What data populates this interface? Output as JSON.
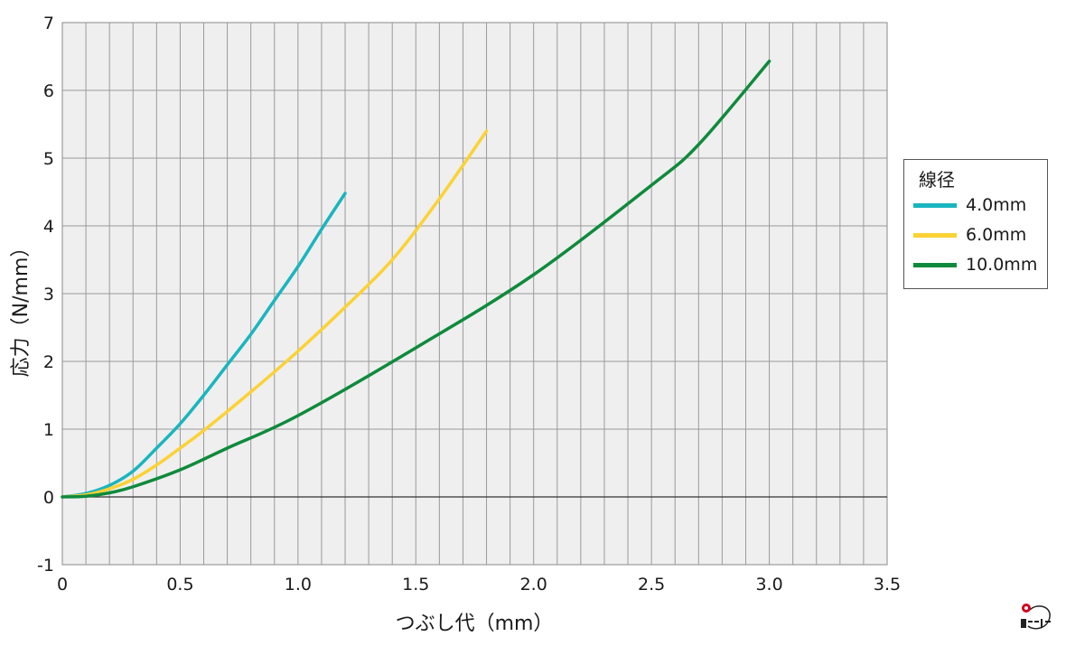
{
  "chart_data": {
    "type": "line",
    "xlabel": "つぶし代（mm）",
    "ylabel": "応力（N/mm）",
    "xlim": [
      0,
      3.5
    ],
    "ylim": [
      -1,
      7
    ],
    "x_ticks": [
      "0",
      "0.5",
      "1.0",
      "1.5",
      "2.0",
      "2.5",
      "3.0",
      "3.5"
    ],
    "y_ticks": [
      "-1",
      "0",
      "1",
      "2",
      "3",
      "4",
      "5",
      "6",
      "7"
    ],
    "grid": true,
    "legend_title": "線径",
    "legend_position": "right",
    "series": [
      {
        "name": "4.0mm",
        "color": "#1ab5bf",
        "points": [
          [
            0,
            0
          ],
          [
            0.1,
            0.05
          ],
          [
            0.2,
            0.17
          ],
          [
            0.3,
            0.38
          ],
          [
            0.4,
            0.72
          ],
          [
            0.5,
            1.08
          ],
          [
            0.6,
            1.5
          ],
          [
            0.7,
            1.95
          ],
          [
            0.8,
            2.4
          ],
          [
            0.9,
            2.9
          ],
          [
            1.0,
            3.4
          ],
          [
            1.1,
            3.95
          ],
          [
            1.2,
            4.48
          ]
        ]
      },
      {
        "name": "6.0mm",
        "color": "#fbd234",
        "points": [
          [
            0,
            0
          ],
          [
            0.1,
            0.03
          ],
          [
            0.2,
            0.12
          ],
          [
            0.3,
            0.26
          ],
          [
            0.4,
            0.47
          ],
          [
            0.5,
            0.72
          ],
          [
            0.6,
            0.98
          ],
          [
            0.8,
            1.55
          ],
          [
            1.0,
            2.15
          ],
          [
            1.2,
            2.8
          ],
          [
            1.4,
            3.5
          ],
          [
            1.6,
            4.4
          ],
          [
            1.8,
            5.4
          ]
        ]
      },
      {
        "name": "10.0mm",
        "color": "#0f8a3c",
        "points": [
          [
            0,
            0
          ],
          [
            0.1,
            0.01
          ],
          [
            0.2,
            0.06
          ],
          [
            0.3,
            0.15
          ],
          [
            0.5,
            0.4
          ],
          [
            0.7,
            0.72
          ],
          [
            1.0,
            1.2
          ],
          [
            1.5,
            2.2
          ],
          [
            2.0,
            3.28
          ],
          [
            2.5,
            4.6
          ],
          [
            2.7,
            5.2
          ],
          [
            3.0,
            6.43
          ]
        ]
      }
    ]
  }
}
